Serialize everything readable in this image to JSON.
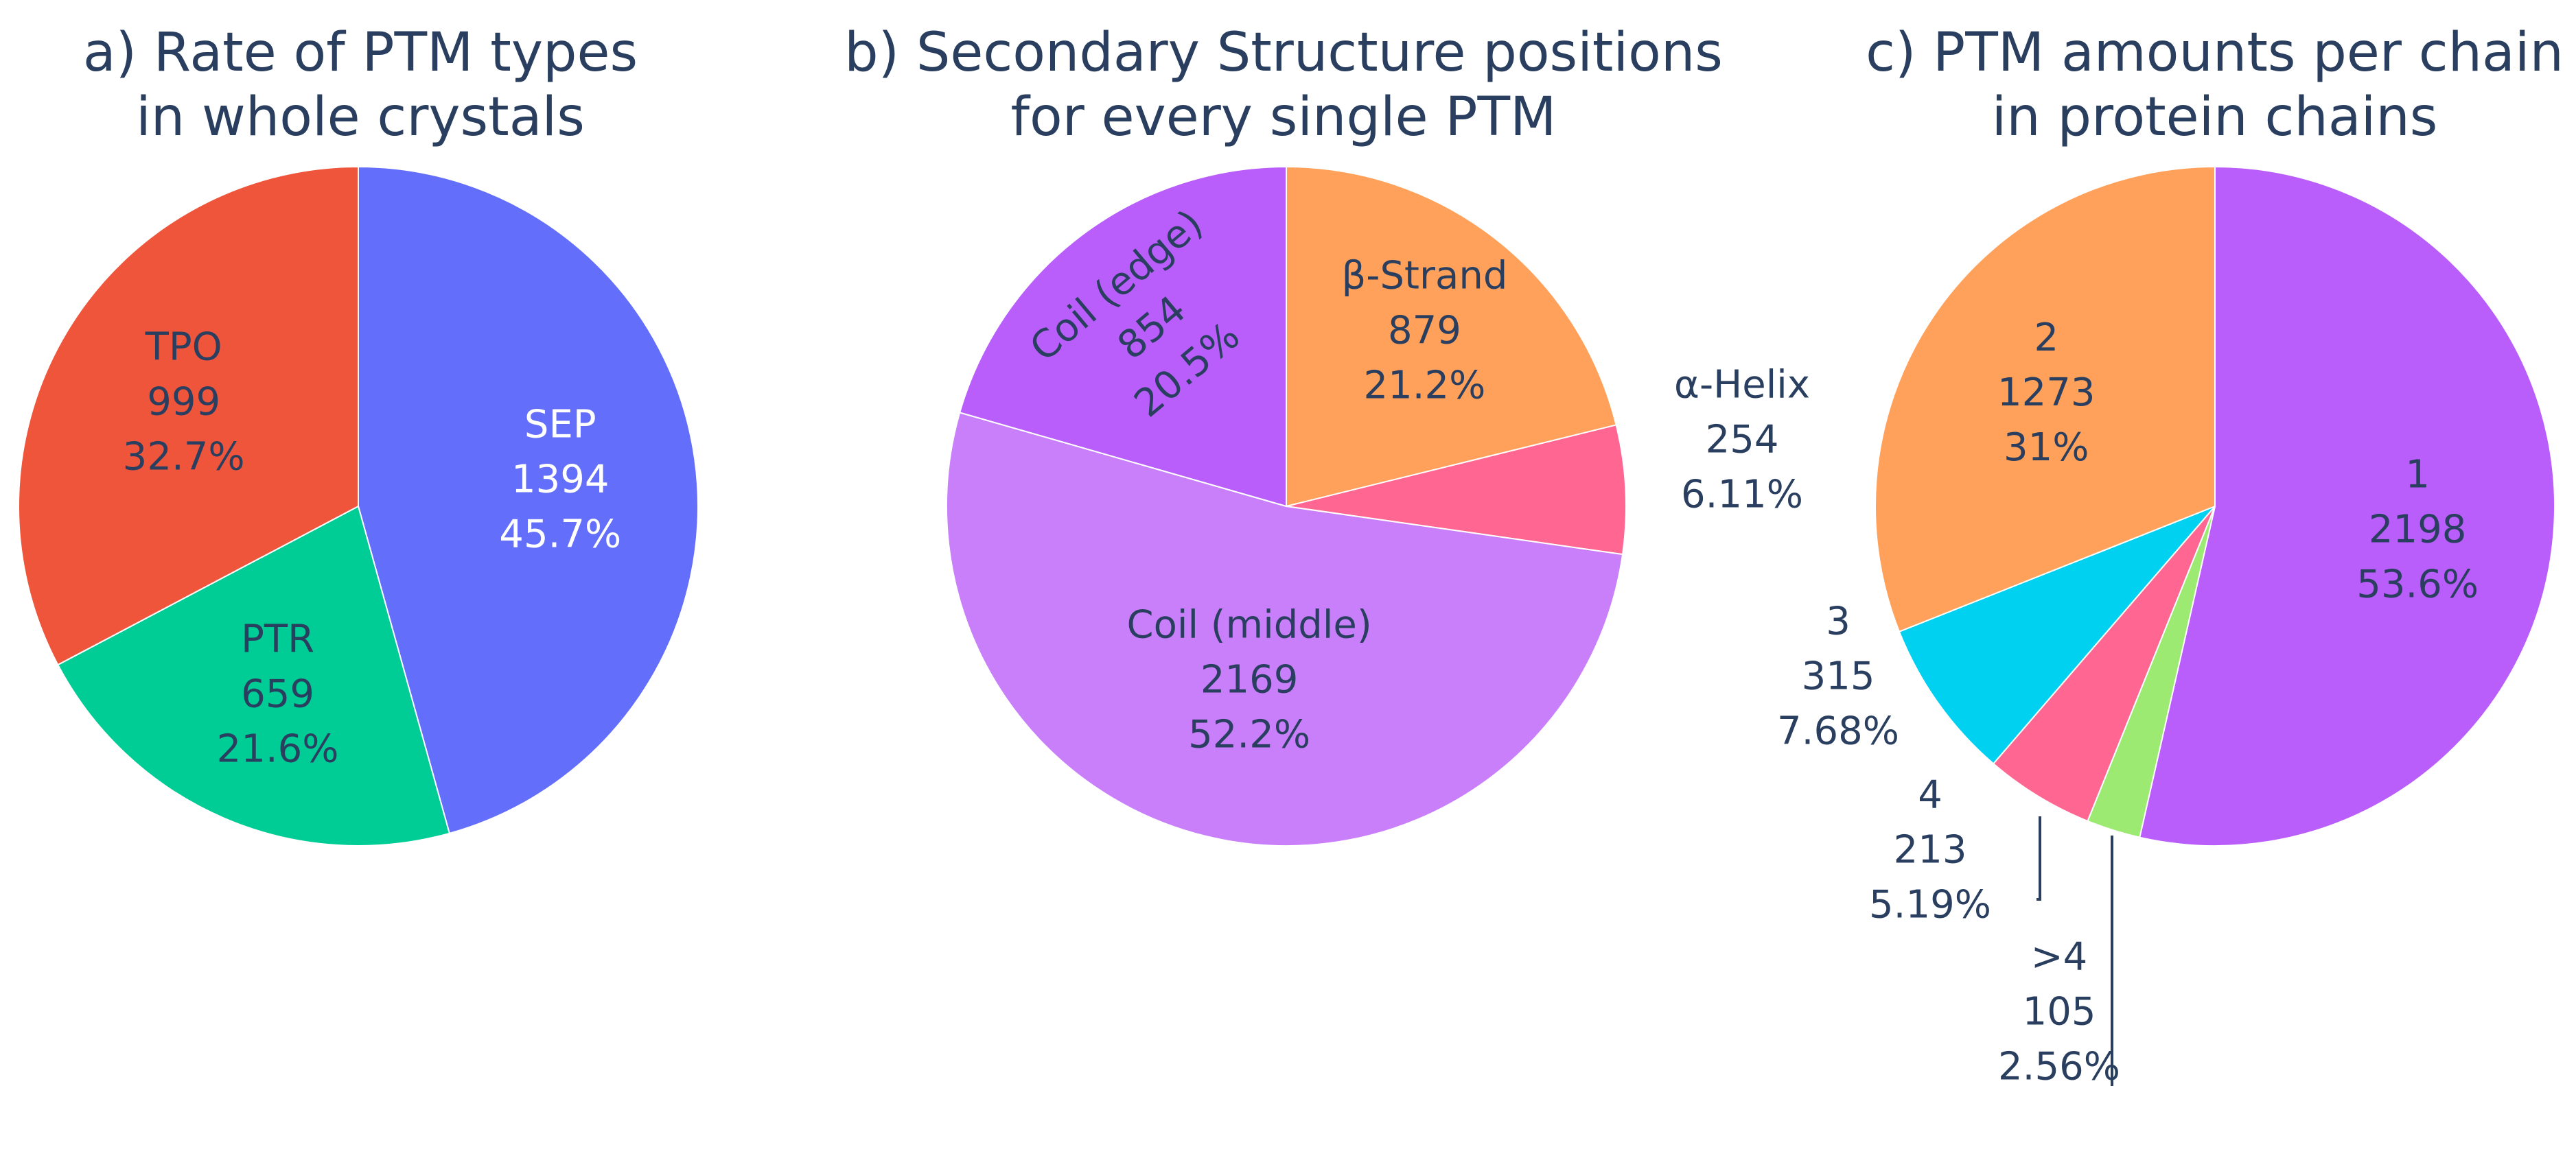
{
  "chart_data": [
    {
      "type": "pie",
      "title": [
        "a) Rate of PTM types",
        "in whole crystals"
      ],
      "slices": [
        {
          "label": "SEP",
          "value": 1394,
          "percent": "45.7%",
          "color": "#636efa",
          "text_color": "#ffffff"
        },
        {
          "label": "PTR",
          "value": 659,
          "percent": "21.6%",
          "color": "#00cc96",
          "text_color": "#2a3f5f"
        },
        {
          "label": "TPO",
          "value": 999,
          "percent": "32.7%",
          "color": "#ef553b",
          "text_color": "#2a3f5f"
        }
      ]
    },
    {
      "type": "pie",
      "title": [
        "b) Secondary Structure positions",
        "for every single PTM"
      ],
      "slices": [
        {
          "label": "β-Strand",
          "value": 879,
          "percent": "21.2%",
          "color": "#ffa15a",
          "text_color": "#2a3f5f"
        },
        {
          "label": "α-Helix",
          "value": 254,
          "percent": "6.11%",
          "color": "#ff6692",
          "text_color": "#2a3f5f"
        },
        {
          "label": "Coil (middle)",
          "value": 2169,
          "percent": "52.2%",
          "color": "#c97ffa",
          "text_color": "#2a3f5f"
        },
        {
          "label": "Coil (edge)",
          "value": 854,
          "percent": "20.5%",
          "color": "#b95efa",
          "text_color": "#2a3f5f"
        }
      ]
    },
    {
      "type": "pie",
      "title": [
        "c) PTM amounts per chain",
        "in protein chains"
      ],
      "slices": [
        {
          "label": "1",
          "value": 2198,
          "percent": "53.6%",
          "color": "#b95efa",
          "text_color": "#2a3f5f"
        },
        {
          "label": ">4",
          "value": 105,
          "percent": "2.56%",
          "color": "#9cea72",
          "text_color": "#2a3f5f"
        },
        {
          "label": "4",
          "value": 213,
          "percent": "5.19%",
          "color": "#ff6692",
          "text_color": "#2a3f5f"
        },
        {
          "label": "3",
          "value": 315,
          "percent": "7.68%",
          "color": "#00d1f0",
          "text_color": "#2a3f5f"
        },
        {
          "label": "2",
          "value": 1273,
          "percent": "31%",
          "color": "#ffa15a",
          "text_color": "#2a3f5f"
        }
      ]
    }
  ]
}
